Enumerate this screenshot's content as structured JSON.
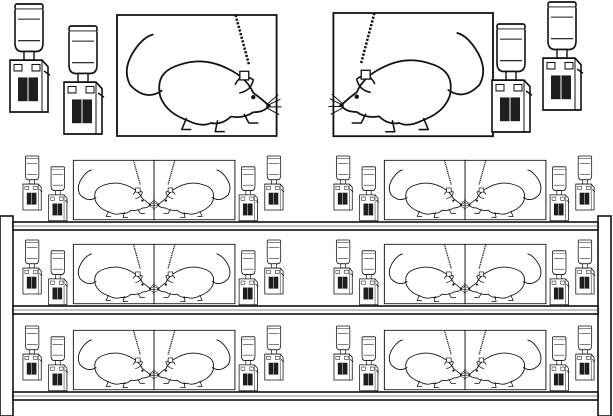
{
  "figure": {
    "colors": {
      "line": "#111111",
      "background": "#ffffff",
      "food_block": "#1e1e1e",
      "shelf": "#ffffff"
    },
    "icons": {
      "subject": "mouse-icon",
      "tether": "cable-tether-icon",
      "pump": "syringe-pump-icon",
      "cage": "operant-chamber-icon",
      "rack": "shelf-rack-icon"
    },
    "counts": {
      "featured_setups": 2,
      "rack_shelves": 3,
      "rack_columns": 2,
      "chambers_per_rack_unit": 2
    }
  }
}
